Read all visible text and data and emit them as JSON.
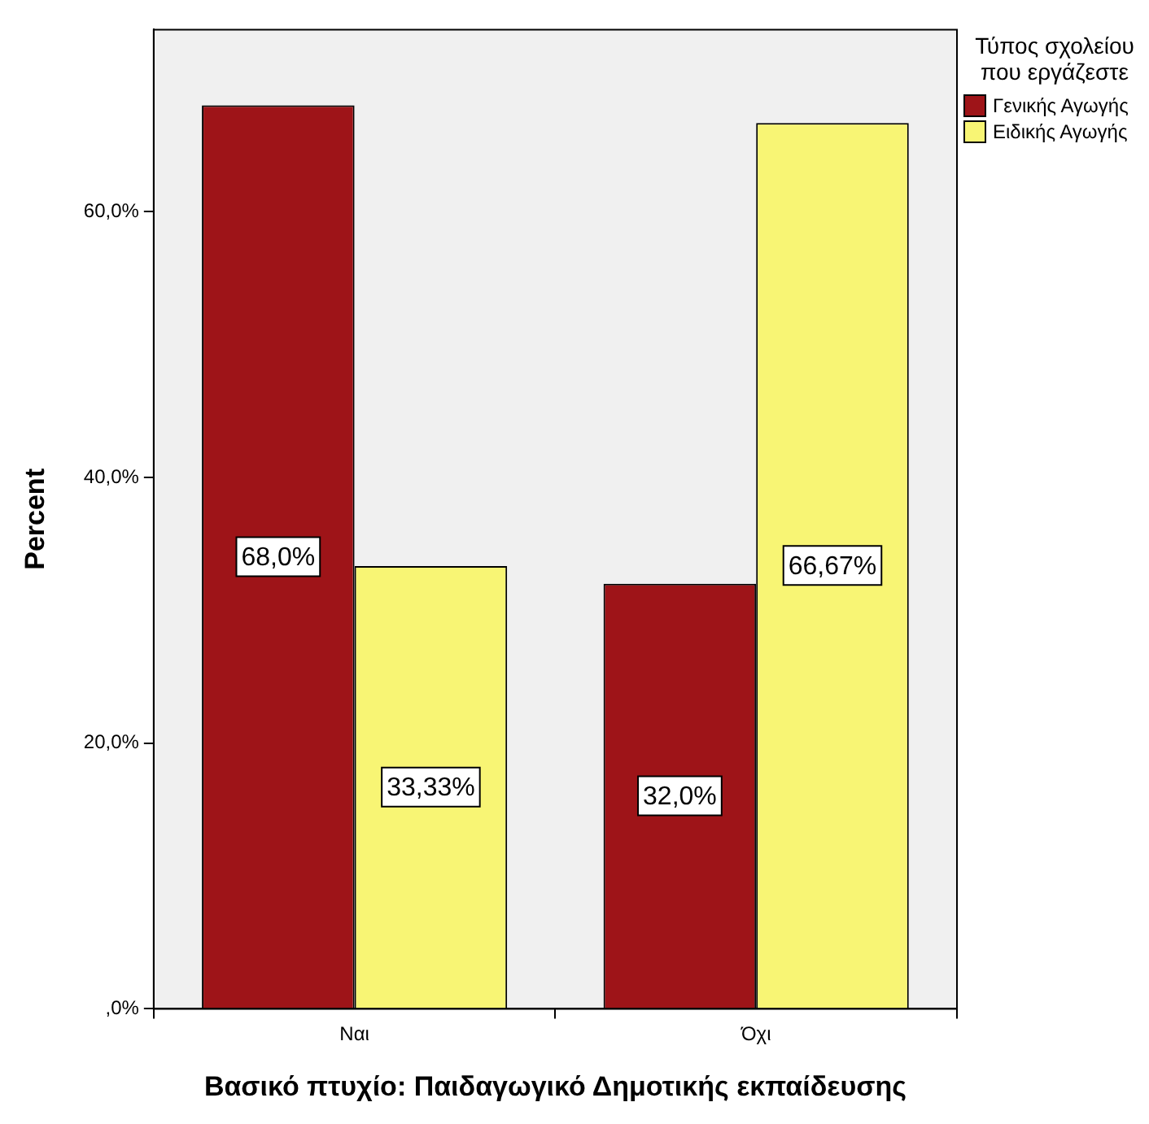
{
  "chart_data": {
    "type": "bar",
    "xlabel": "Βασικό πτυχίο: Παιδαγωγικό Δημοτικής εκπαίδευσης",
    "ylabel": "Percent",
    "legend_title": "Τύπος σχολείου που εργάζεστε",
    "categories": [
      "Ναι",
      "Όχι"
    ],
    "series": [
      {
        "name": "Γενικής Αγωγής",
        "color": "#9e1418",
        "values": [
          68.0,
          32.0
        ],
        "value_labels": [
          "68,0%",
          "32,0%"
        ]
      },
      {
        "name": "Ειδικής  Αγωγής",
        "color": "#f8f574",
        "values": [
          33.33,
          66.67
        ],
        "value_labels": [
          "33,33%",
          "66,67%"
        ]
      }
    ],
    "ylim": [
      0,
      73.7
    ],
    "yticks": [
      {
        "value": 0,
        "label": ",0%"
      },
      {
        "value": 20,
        "label": "20,0%"
      },
      {
        "value": 40,
        "label": "40,0%"
      },
      {
        "value": 60,
        "label": "60,0%"
      }
    ],
    "grid": false,
    "legend": "top right"
  }
}
